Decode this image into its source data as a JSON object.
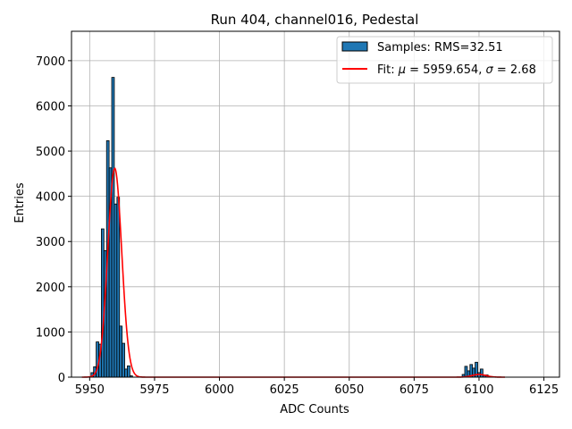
{
  "chart_data": {
    "type": "bar",
    "title": "Run 404, channel016, Pedestal",
    "xlabel": "ADC Counts",
    "ylabel": "Entries",
    "xlim": [
      5943,
      6131
    ],
    "ylim": [
      0,
      7650
    ],
    "xticks": [
      5950,
      5975,
      6000,
      6025,
      6050,
      6075,
      6100,
      6125
    ],
    "yticks": [
      0,
      1000,
      2000,
      3000,
      4000,
      5000,
      6000,
      7000
    ],
    "grid": true,
    "legend_position": "top-right",
    "bin_width": 1,
    "histogram": {
      "name": "Samples: RMS=32.51",
      "color": "#1f77b4",
      "bins": [
        {
          "x": 5951,
          "y": 100
        },
        {
          "x": 5952,
          "y": 230
        },
        {
          "x": 5953,
          "y": 780
        },
        {
          "x": 5954,
          "y": 730
        },
        {
          "x": 5955,
          "y": 3280
        },
        {
          "x": 5956,
          "y": 2800
        },
        {
          "x": 5957,
          "y": 5230
        },
        {
          "x": 5958,
          "y": 4630
        },
        {
          "x": 5959,
          "y": 6630
        },
        {
          "x": 5960,
          "y": 3830
        },
        {
          "x": 5961,
          "y": 3980
        },
        {
          "x": 5962,
          "y": 1130
        },
        {
          "x": 5963,
          "y": 750
        },
        {
          "x": 5964,
          "y": 180
        },
        {
          "x": 5965,
          "y": 250
        },
        {
          "x": 5966,
          "y": 30
        },
        {
          "x": 6094,
          "y": 60
        },
        {
          "x": 6095,
          "y": 240
        },
        {
          "x": 6096,
          "y": 140
        },
        {
          "x": 6097,
          "y": 280
        },
        {
          "x": 6098,
          "y": 200
        },
        {
          "x": 6099,
          "y": 330
        },
        {
          "x": 6100,
          "y": 100
        },
        {
          "x": 6101,
          "y": 180
        },
        {
          "x": 6102,
          "y": 40
        },
        {
          "x": 6103,
          "y": 50
        }
      ]
    },
    "fit": {
      "name": "Fit: μ = 5959.654, σ = 2.68",
      "color": "#ff0000",
      "components": [
        {
          "mu": 5959.654,
          "sigma": 2.68,
          "amplitude": 4620
        },
        {
          "mu": 6100.0,
          "sigma": 2.68,
          "amplitude": 60
        }
      ],
      "x_range": [
        5947,
        6110
      ]
    }
  }
}
